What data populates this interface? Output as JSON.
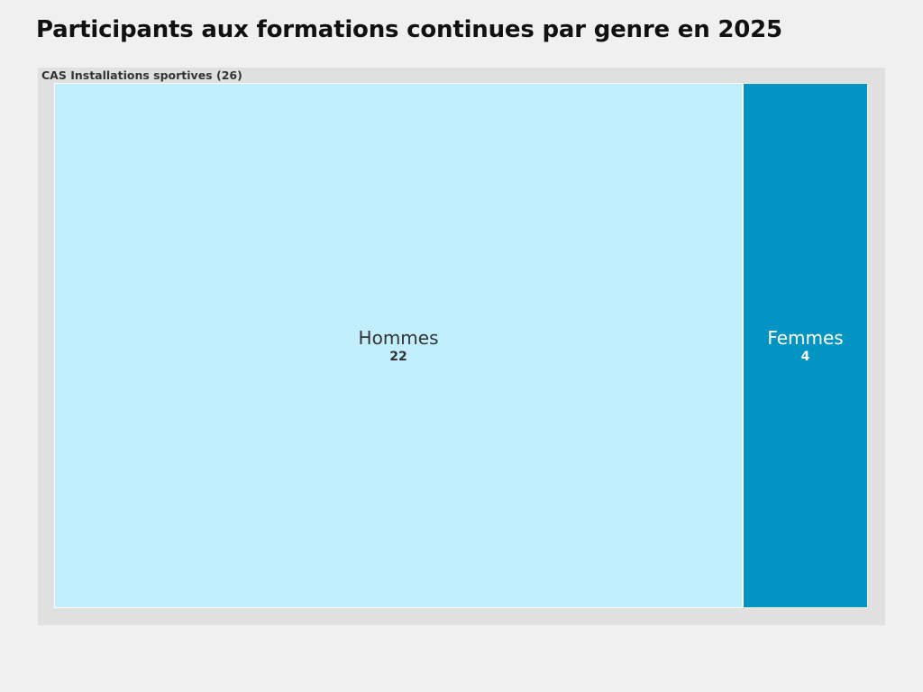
{
  "chart_data": {
    "type": "treemap",
    "title": "Participants aux formations continues par genre en 2025",
    "group": {
      "name": "CAS Installations sportives",
      "total": 26
    },
    "tiles": [
      {
        "name": "Hommes",
        "value": 22,
        "color": "#c2effd",
        "text_color": "#333333"
      },
      {
        "name": "Femmes",
        "value": 4,
        "color": "#0394c4",
        "text_color": "#ffffff"
      }
    ]
  }
}
